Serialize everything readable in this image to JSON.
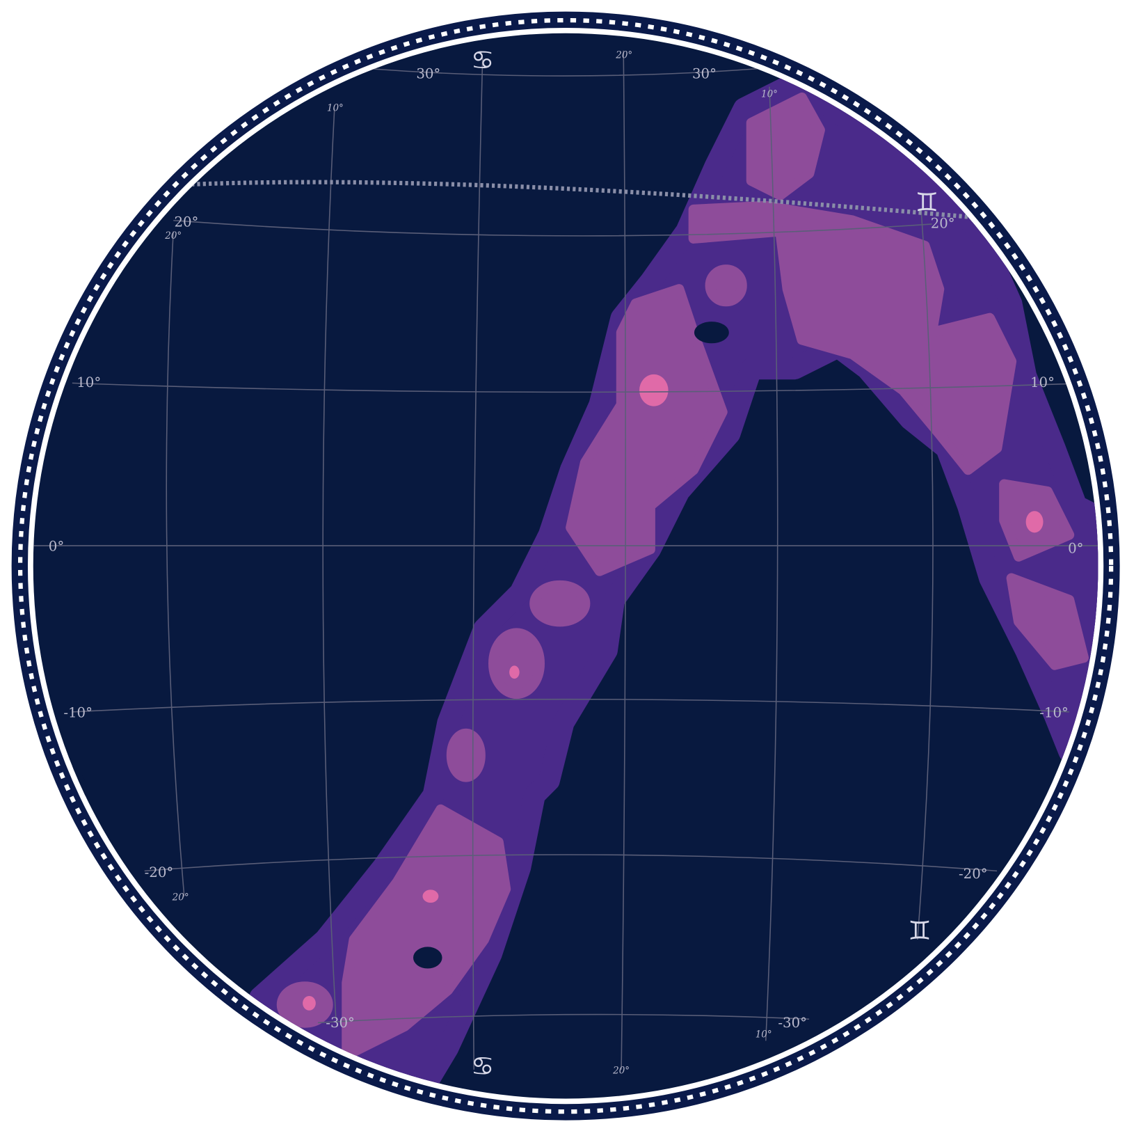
{
  "grid_labels": [
    "30°",
    "30°",
    "20°",
    "20°",
    "10°",
    "10°",
    "0°",
    "0°",
    "-10°",
    "-10°",
    "-20°",
    "-20°",
    "-30°",
    "-30°"
  ],
  "minor_labels": [
    "20°",
    "20°",
    "20°",
    "20°",
    "10°",
    "10°",
    "10°"
  ],
  "zodiac": [
    "♋",
    "♋",
    "♊",
    "♊"
  ]
}
